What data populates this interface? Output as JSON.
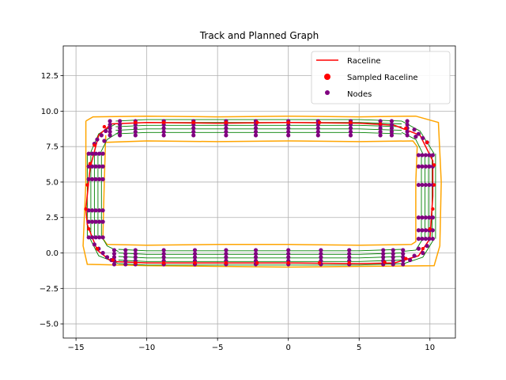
{
  "chart_data": {
    "type": "scatter",
    "title": "Track and Planned Graph",
    "xlabel": "",
    "ylabel": "",
    "xlim": [
      -15.9,
      11.8
    ],
    "ylim": [
      -6.0,
      14.6
    ],
    "xticks": [
      -15,
      -10,
      -5,
      0,
      5,
      10
    ],
    "yticks": [
      -5.0,
      -2.5,
      0.0,
      2.5,
      5.0,
      7.5,
      10.0,
      12.5
    ],
    "xtick_labels": [
      "−15",
      "−10",
      "−5",
      "0",
      "5",
      "10"
    ],
    "ytick_labels": [
      "−5.0",
      "−2.5",
      "0.0",
      "2.5",
      "5.0",
      "7.5",
      "10.0",
      "12.5"
    ],
    "grid": true,
    "legend_position": "top-right",
    "colors": {
      "track": "#ffa500",
      "raceline": "#ff0000",
      "sampled": "#ff0000",
      "nodes": "#800080",
      "edges": "#008000",
      "grid": "#b0b0b0"
    },
    "legend": [
      {
        "label": "Raceline",
        "marker": "line",
        "color": "#ff0000"
      },
      {
        "label": "Sampled Raceline",
        "marker": "dot",
        "color": "#ff0000"
      },
      {
        "label": "Nodes",
        "marker": "small-dot",
        "color": "#800080"
      }
    ],
    "track_outer": [
      [
        -14.3,
        9.3
      ],
      [
        -13.8,
        9.6
      ],
      [
        -10,
        9.65
      ],
      [
        -5,
        9.6
      ],
      [
        0,
        9.65
      ],
      [
        5,
        9.6
      ],
      [
        9,
        9.65
      ],
      [
        10.6,
        9.2
      ],
      [
        10.8,
        5
      ],
      [
        10.7,
        0.5
      ],
      [
        10.3,
        -0.9
      ],
      [
        5,
        -0.95
      ],
      [
        0,
        -1.0
      ],
      [
        -5,
        -0.95
      ],
      [
        -10,
        -0.9
      ],
      [
        -14.2,
        -0.8
      ],
      [
        -14.5,
        0.5
      ],
      [
        -14.3,
        5
      ],
      [
        -14.3,
        9.3
      ]
    ],
    "track_inner": [
      [
        -12.9,
        8.3
      ],
      [
        -12.9,
        7.8
      ],
      [
        -10,
        7.9
      ],
      [
        -5,
        7.85
      ],
      [
        0,
        7.9
      ],
      [
        5,
        7.85
      ],
      [
        8.8,
        7.9
      ],
      [
        9.1,
        7.5
      ],
      [
        9.0,
        5
      ],
      [
        9.0,
        0.8
      ],
      [
        8.7,
        0.6
      ],
      [
        5,
        0.55
      ],
      [
        0,
        0.6
      ],
      [
        -5,
        0.6
      ],
      [
        -10,
        0.55
      ],
      [
        -12.8,
        0.6
      ],
      [
        -13.1,
        1.0
      ],
      [
        -13.0,
        5
      ],
      [
        -12.9,
        8.3
      ]
    ],
    "raceline": [
      [
        -13.4,
        8.3
      ],
      [
        -12.5,
        9.1
      ],
      [
        -10,
        9.2
      ],
      [
        -5,
        9.15
      ],
      [
        0,
        9.2
      ],
      [
        5,
        9.15
      ],
      [
        7.5,
        9.0
      ],
      [
        9.3,
        8.3
      ],
      [
        10.2,
        6.5
      ],
      [
        10.2,
        4.0
      ],
      [
        10.0,
        1.0
      ],
      [
        9.2,
        -0.2
      ],
      [
        7.5,
        -0.7
      ],
      [
        5,
        -0.75
      ],
      [
        0,
        -0.7
      ],
      [
        -5,
        -0.7
      ],
      [
        -10,
        -0.7
      ],
      [
        -12.5,
        -0.6
      ],
      [
        -13.5,
        0.2
      ],
      [
        -14.2,
        2.0
      ],
      [
        -14.3,
        3.1
      ],
      [
        -14.0,
        6.0
      ],
      [
        -13.4,
        8.3
      ]
    ],
    "sampled_raceline": [
      [
        -13.0,
        8.9
      ],
      [
        -10.8,
        9.2
      ],
      [
        -8.8,
        9.2
      ],
      [
        -6.7,
        9.2
      ],
      [
        -4.4,
        9.2
      ],
      [
        -2.2,
        9.2
      ],
      [
        0,
        9.2
      ],
      [
        2.2,
        9.2
      ],
      [
        4.4,
        9.2
      ],
      [
        6.5,
        9.1
      ],
      [
        8.3,
        8.8
      ],
      [
        9.8,
        7.8
      ],
      [
        10.3,
        6.2
      ],
      [
        10.3,
        4.8
      ],
      [
        10.2,
        3.1
      ],
      [
        10.0,
        1.7
      ],
      [
        9.5,
        0.3
      ],
      [
        8.3,
        -0.4
      ],
      [
        6.8,
        -0.65
      ],
      [
        4.3,
        -0.7
      ],
      [
        2.2,
        -0.7
      ],
      [
        0,
        -0.7
      ],
      [
        -2.2,
        -0.7
      ],
      [
        -4.4,
        -0.7
      ],
      [
        -6.6,
        -0.7
      ],
      [
        -8.8,
        -0.7
      ],
      [
        -10.8,
        -0.7
      ],
      [
        -12.4,
        -0.5
      ],
      [
        -13.5,
        0.3
      ],
      [
        -14.1,
        1.7
      ],
      [
        -14.3,
        3.1
      ],
      [
        -14.2,
        4.8
      ],
      [
        -14.0,
        6.3
      ],
      [
        -13.7,
        7.6
      ]
    ],
    "node_columns_top_x": [
      -12.6,
      -11.9,
      -10.8,
      -8.8,
      -6.7,
      -4.4,
      -2.3,
      0,
      2.1,
      4.4,
      6.5,
      7.3,
      8.4
    ],
    "node_columns_bottom_x": [
      -12.3,
      -11.5,
      -10.8,
      -8.8,
      -6.6,
      -4.4,
      -2.3,
      0,
      2.3,
      4.3,
      6.7,
      7.4,
      8.1
    ],
    "node_rows_left_y": [
      7.0,
      6.1,
      5.2,
      3.0,
      2.2,
      1.1
    ],
    "node_rows_right_y": [
      6.9,
      6.1,
      4.8,
      2.5,
      1.6,
      1.0
    ]
  }
}
